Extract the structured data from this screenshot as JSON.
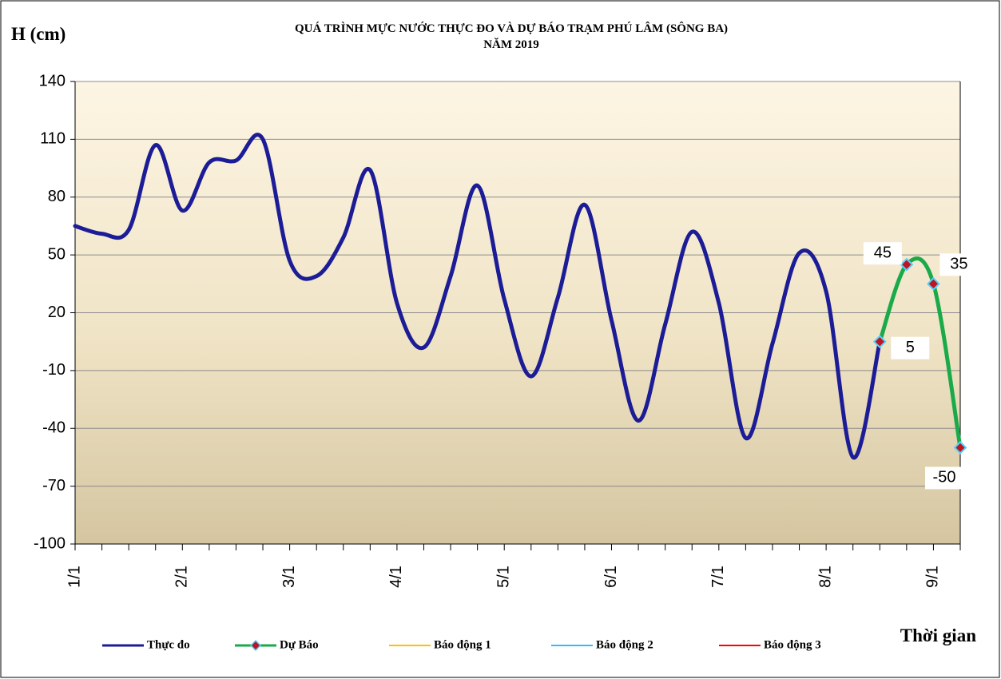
{
  "chart_data": {
    "type": "line",
    "title": "QUÁ TRÌNH MỰC NƯỚC THỰC ĐO VÀ DỰ BÁO TRẠM PHÚ LÂM (SÔNG BA)",
    "subtitle": "NĂM  2019",
    "y_label": "H (cm)",
    "x_label": "Thời gian",
    "categories": [
      "1/1",
      null,
      null,
      null,
      "2/1",
      null,
      null,
      null,
      "3/1",
      null,
      null,
      null,
      "4/1",
      null,
      null,
      null,
      "5/1",
      null,
      null,
      null,
      "6/1",
      null,
      null,
      null,
      "7/1",
      null,
      null,
      null,
      "8/1",
      null,
      null,
      null,
      "9/1",
      null
    ],
    "series": [
      {
        "name": "Thực đo",
        "color": "#1c1c96",
        "values": [
          65,
          61,
          63,
          107,
          73,
          98,
          99,
          110,
          47,
          39,
          59,
          94,
          25,
          2,
          39,
          86,
          27,
          -13,
          28,
          76,
          16,
          -36,
          14,
          62,
          25,
          -45,
          4,
          51,
          31,
          -55,
          5,
          null,
          null,
          null
        ]
      },
      {
        "name": "Dự Báo",
        "color": "#1aaa4a",
        "marker": "diamond",
        "values": [
          null,
          null,
          null,
          null,
          null,
          null,
          null,
          null,
          null,
          null,
          null,
          null,
          null,
          null,
          null,
          null,
          null,
          null,
          null,
          null,
          null,
          null,
          null,
          null,
          null,
          null,
          null,
          null,
          null,
          null,
          5,
          45,
          35,
          -50
        ]
      },
      {
        "name": "Báo động 1",
        "color": "#ffc000",
        "values": [
          null,
          null,
          null,
          null,
          null,
          null,
          null,
          null,
          null,
          null,
          null,
          null,
          null,
          null,
          null,
          null,
          null,
          null,
          null,
          null,
          null,
          null,
          null,
          null,
          null,
          null,
          null,
          null,
          null,
          null,
          null,
          null,
          null,
          null
        ]
      },
      {
        "name": "Báo động 2",
        "color": "#33bbff",
        "values": [
          null,
          null,
          null,
          null,
          null,
          null,
          null,
          null,
          null,
          null,
          null,
          null,
          null,
          null,
          null,
          null,
          null,
          null,
          null,
          null,
          null,
          null,
          null,
          null,
          null,
          null,
          null,
          null,
          null,
          null,
          null,
          null,
          null,
          null
        ]
      },
      {
        "name": "Báo động 3",
        "color": "#ff0000",
        "values": [
          null,
          null,
          null,
          null,
          null,
          null,
          null,
          null,
          null,
          null,
          null,
          null,
          null,
          null,
          null,
          null,
          null,
          null,
          null,
          null,
          null,
          null,
          null,
          null,
          null,
          null,
          null,
          null,
          null,
          null,
          null,
          null,
          null,
          null
        ]
      }
    ],
    "ylim": [
      -100,
      140
    ],
    "yticks": [
      -100,
      -70,
      -40,
      -10,
      20,
      50,
      80,
      110,
      140
    ],
    "grid": true,
    "legend": "bottom"
  }
}
